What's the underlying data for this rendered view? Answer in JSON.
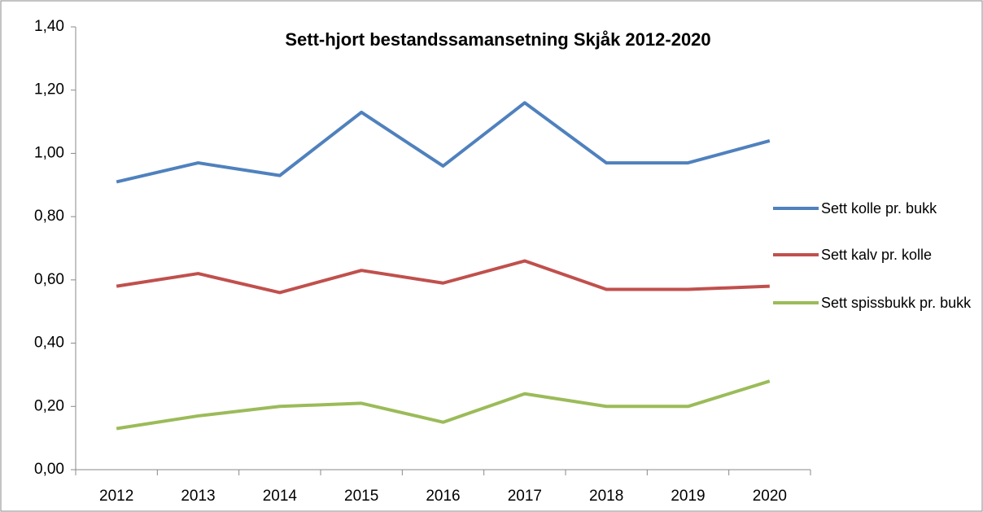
{
  "chart_data": {
    "type": "line",
    "title": "Sett-hjort bestandssamansetning  Skjåk 2012-2020",
    "categories": [
      "2012",
      "2013",
      "2014",
      "2015",
      "2016",
      "2017",
      "2018",
      "2019",
      "2020"
    ],
    "series": [
      {
        "name": "Sett kolle pr. bukk",
        "color": "#4f81bd",
        "values": [
          0.91,
          0.97,
          0.93,
          1.13,
          0.96,
          1.16,
          0.97,
          0.97,
          1.04
        ]
      },
      {
        "name": "Sett kalv pr. kolle",
        "color": "#c0504d",
        "values": [
          0.58,
          0.62,
          0.56,
          0.63,
          0.59,
          0.66,
          0.57,
          0.57,
          0.58
        ]
      },
      {
        "name": "Sett spissbukk pr. bukk",
        "color": "#9bbb59",
        "values": [
          0.13,
          0.17,
          0.2,
          0.21,
          0.15,
          0.24,
          0.2,
          0.2,
          0.28
        ]
      }
    ],
    "ylim": [
      0,
      1.4
    ],
    "yticks": [
      {
        "value": 0,
        "label": "0,00"
      },
      {
        "value": 0.2,
        "label": "0,20"
      },
      {
        "value": 0.4,
        "label": "0,40"
      },
      {
        "value": 0.6,
        "label": "0,60"
      },
      {
        "value": 0.8,
        "label": "0,80"
      },
      {
        "value": 1,
        "label": "1,00"
      },
      {
        "value": 1.2,
        "label": "1,20"
      },
      {
        "value": 1.4,
        "label": "1,40"
      }
    ],
    "grid": false,
    "legend": "right"
  }
}
